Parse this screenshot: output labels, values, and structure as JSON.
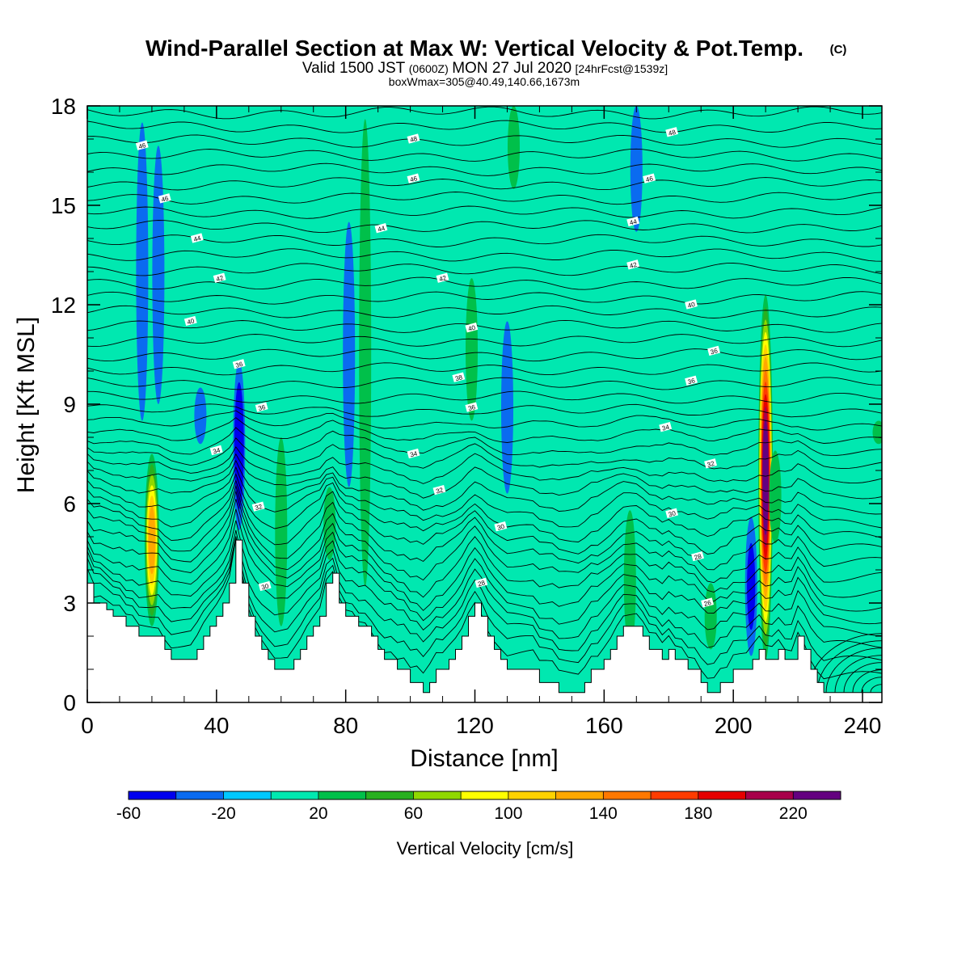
{
  "header": {
    "title": "Wind-Parallel Section at Max W: Vertical Velocity & Pot.Temp.",
    "title_mark": "(C)",
    "valid_prefix": "Valid 1500 JST",
    "valid_utc": "(0600Z)",
    "valid_date": "MON 27 Jul 2020",
    "forecast": "[24hrFcst@1539z]",
    "box_info": "boxWmax=305@40.49,140.66,1673m"
  },
  "chart_data": {
    "type": "heatmap",
    "title": "Wind-Parallel Section at Max W: Vertical Velocity & Pot.Temp.",
    "xlabel": "Distance [nm]",
    "ylabel": "Height [Kft MSL]",
    "xlim": [
      0,
      246
    ],
    "ylim": [
      0,
      18
    ],
    "x_ticks": [
      "0",
      "40",
      "80",
      "120",
      "160",
      "200",
      "240"
    ],
    "y_ticks": [
      "0",
      "3",
      "6",
      "9",
      "12",
      "15",
      "18"
    ],
    "x_tick_values": [
      0,
      40,
      80,
      120,
      160,
      200,
      240
    ],
    "y_tick_values": [
      0,
      3,
      6,
      9,
      12,
      15,
      18
    ],
    "colorbar": {
      "label": "Vertical Velocity [cm/s]",
      "min": -60,
      "max": 240,
      "step": 20,
      "tick_labels": [
        "-60",
        "-20",
        "20",
        "60",
        "100",
        "140",
        "180",
        "220"
      ],
      "tick_values": [
        -60,
        -20,
        20,
        60,
        100,
        140,
        180,
        220
      ],
      "colors": [
        "#0000ee",
        "#0a6bf0",
        "#00c8ff",
        "#00e8b0",
        "#00c04a",
        "#28b020",
        "#90d800",
        "#ffff00",
        "#ffd200",
        "#ffa800",
        "#ff7800",
        "#ff3c00",
        "#e60000",
        "#a8004a",
        "#640080"
      ]
    },
    "background_w": 0,
    "vertical_velocity_features": [
      {
        "x": 20,
        "y_bot": 2.3,
        "y_top": 7.5,
        "w": 124
      },
      {
        "x": 205.5,
        "y_bot": 1.4,
        "y_top": 5.6,
        "w": -40
      },
      {
        "x": 47,
        "y_bot": 5.2,
        "y_top": 10.3,
        "w": -60
      },
      {
        "x": 17,
        "y_bot": 8.5,
        "y_top": 17.5,
        "w": -30
      },
      {
        "x": 22,
        "y_bot": 9.0,
        "y_top": 16.8,
        "w": -30
      },
      {
        "x": 35,
        "y_bot": 7.8,
        "y_top": 9.5,
        "w": -30
      },
      {
        "x": 60,
        "y_bot": 2.3,
        "y_top": 8.0,
        "w": 30
      },
      {
        "x": 75,
        "y_bot": 4.3,
        "y_top": 6.5,
        "w": 30
      },
      {
        "x": 81,
        "y_bot": 6.5,
        "y_top": 14.5,
        "w": -30
      },
      {
        "x": 86,
        "y_bot": 3.5,
        "y_top": 17.6,
        "w": 30
      },
      {
        "x": 119,
        "y_bot": 8.5,
        "y_top": 12.8,
        "w": 30
      },
      {
        "x": 130,
        "y_bot": 6.3,
        "y_top": 11.5,
        "w": -30
      },
      {
        "x": 132,
        "y_bot": 15.5,
        "y_top": 18.0,
        "w": 30
      },
      {
        "x": 168,
        "y_bot": 1.6,
        "y_top": 5.8,
        "w": 30
      },
      {
        "x": 170,
        "y_bot": 14.2,
        "y_top": 18.0,
        "w": -30
      },
      {
        "x": 193,
        "y_bot": 1.6,
        "y_top": 3.6,
        "w": 30
      },
      {
        "x": 210,
        "y_bot": 1.3,
        "y_top": 12.3,
        "w": 220
      },
      {
        "x": 213,
        "y_bot": 4.8,
        "y_top": 7.6,
        "w": 30
      },
      {
        "x": 245,
        "y_bot": 7.8,
        "y_top": 8.5,
        "w": 30
      }
    ],
    "terrain_kft": [
      [
        0,
        3.6
      ],
      [
        2,
        3.6
      ],
      [
        2,
        3.0
      ],
      [
        6,
        3.0
      ],
      [
        6,
        2.8
      ],
      [
        8,
        2.8
      ],
      [
        8,
        2.6
      ],
      [
        12,
        2.6
      ],
      [
        12,
        2.3
      ],
      [
        16,
        2.3
      ],
      [
        16,
        2.0
      ],
      [
        24,
        2.0
      ],
      [
        24,
        1.6
      ],
      [
        26,
        1.6
      ],
      [
        26,
        1.3
      ],
      [
        34,
        1.3
      ],
      [
        34,
        1.6
      ],
      [
        36,
        1.6
      ],
      [
        36,
        2.0
      ],
      [
        38,
        2.0
      ],
      [
        38,
        2.3
      ],
      [
        40,
        2.3
      ],
      [
        40,
        2.6
      ],
      [
        42,
        2.6
      ],
      [
        42,
        3.0
      ],
      [
        44,
        3.0
      ],
      [
        44,
        3.6
      ],
      [
        46,
        3.6
      ],
      [
        46,
        4.9
      ],
      [
        48,
        4.9
      ],
      [
        48,
        3.6
      ],
      [
        50,
        3.6
      ],
      [
        50,
        2.6
      ],
      [
        52,
        2.6
      ],
      [
        52,
        2.0
      ],
      [
        54,
        2.0
      ],
      [
        54,
        1.6
      ],
      [
        56,
        1.6
      ],
      [
        56,
        1.3
      ],
      [
        58,
        1.3
      ],
      [
        58,
        1.0
      ],
      [
        64,
        1.0
      ],
      [
        64,
        1.3
      ],
      [
        66,
        1.3
      ],
      [
        66,
        1.6
      ],
      [
        68,
        1.6
      ],
      [
        68,
        2.0
      ],
      [
        70,
        2.0
      ],
      [
        70,
        2.3
      ],
      [
        72,
        2.3
      ],
      [
        72,
        2.6
      ],
      [
        74,
        2.6
      ],
      [
        74,
        3.6
      ],
      [
        76,
        3.6
      ],
      [
        76,
        3.9
      ],
      [
        78,
        3.9
      ],
      [
        78,
        3.0
      ],
      [
        80,
        3.0
      ],
      [
        80,
        2.6
      ],
      [
        84,
        2.6
      ],
      [
        84,
        2.3
      ],
      [
        88,
        2.3
      ],
      [
        88,
        2.0
      ],
      [
        90,
        2.0
      ],
      [
        90,
        1.6
      ],
      [
        92,
        1.6
      ],
      [
        92,
        1.3
      ],
      [
        96,
        1.3
      ],
      [
        96,
        1.0
      ],
      [
        100,
        1.0
      ],
      [
        100,
        0.6
      ],
      [
        104,
        0.6
      ],
      [
        104,
        0.3
      ],
      [
        106,
        0.3
      ],
      [
        106,
        0.6
      ],
      [
        108,
        0.6
      ],
      [
        108,
        1.0
      ],
      [
        112,
        1.0
      ],
      [
        112,
        1.3
      ],
      [
        114,
        1.3
      ],
      [
        114,
        1.6
      ],
      [
        116,
        1.6
      ],
      [
        116,
        2.0
      ],
      [
        118,
        2.0
      ],
      [
        118,
        2.6
      ],
      [
        120,
        2.6
      ],
      [
        120,
        3.0
      ],
      [
        122,
        3.0
      ],
      [
        122,
        2.6
      ],
      [
        124,
        2.6
      ],
      [
        124,
        2.0
      ],
      [
        126,
        2.0
      ],
      [
        126,
        1.6
      ],
      [
        128,
        1.6
      ],
      [
        128,
        1.3
      ],
      [
        130,
        1.3
      ],
      [
        130,
        1.0
      ],
      [
        140,
        1.0
      ],
      [
        140,
        0.6
      ],
      [
        146,
        0.6
      ],
      [
        146,
        0.3
      ],
      [
        154,
        0.3
      ],
      [
        154,
        0.6
      ],
      [
        156,
        0.6
      ],
      [
        156,
        1.0
      ],
      [
        160,
        1.0
      ],
      [
        160,
        1.3
      ],
      [
        162,
        1.3
      ],
      [
        162,
        1.6
      ],
      [
        164,
        1.6
      ],
      [
        164,
        2.0
      ],
      [
        166,
        2.0
      ],
      [
        166,
        2.3
      ],
      [
        172,
        2.3
      ],
      [
        172,
        2.0
      ],
      [
        174,
        2.0
      ],
      [
        174,
        1.6
      ],
      [
        178,
        1.6
      ],
      [
        178,
        1.3
      ],
      [
        180,
        1.3
      ],
      [
        180,
        1.6
      ],
      [
        182,
        1.6
      ],
      [
        182,
        1.3
      ],
      [
        186,
        1.3
      ],
      [
        186,
        1.0
      ],
      [
        190,
        1.0
      ],
      [
        190,
        0.6
      ],
      [
        192,
        0.6
      ],
      [
        192,
        0.3
      ],
      [
        196,
        0.3
      ],
      [
        196,
        0.6
      ],
      [
        200,
        0.6
      ],
      [
        200,
        1.0
      ],
      [
        206,
        1.0
      ],
      [
        206,
        1.3
      ],
      [
        208,
        1.3
      ],
      [
        208,
        1.6
      ],
      [
        210,
        1.6
      ],
      [
        210,
        1.3
      ],
      [
        214,
        1.3
      ],
      [
        214,
        1.6
      ],
      [
        216,
        1.6
      ],
      [
        216,
        1.3
      ],
      [
        220,
        1.3
      ],
      [
        220,
        2.0
      ],
      [
        222,
        2.0
      ],
      [
        222,
        1.6
      ],
      [
        224,
        1.6
      ],
      [
        224,
        1.0
      ],
      [
        226,
        1.0
      ],
      [
        226,
        0.6
      ],
      [
        228,
        0.6
      ],
      [
        228,
        0.3
      ],
      [
        246,
        0.3
      ]
    ],
    "theta_contours": {
      "units": "C",
      "interval": 2,
      "labels": [
        {
          "text": "46",
          "x": 17,
          "y": 16.8
        },
        {
          "text": "46",
          "x": 24,
          "y": 15.2
        },
        {
          "text": "44",
          "x": 34,
          "y": 14.0
        },
        {
          "text": "42",
          "x": 41,
          "y": 12.8
        },
        {
          "text": "40",
          "x": 32,
          "y": 11.5
        },
        {
          "text": "36",
          "x": 47,
          "y": 10.2
        },
        {
          "text": "36",
          "x": 54,
          "y": 8.9
        },
        {
          "text": "34",
          "x": 40,
          "y": 7.6
        },
        {
          "text": "32",
          "x": 53,
          "y": 5.9
        },
        {
          "text": "30",
          "x": 55,
          "y": 3.5
        },
        {
          "text": "48",
          "x": 101,
          "y": 17.0
        },
        {
          "text": "46",
          "x": 101,
          "y": 15.8
        },
        {
          "text": "44",
          "x": 91,
          "y": 14.3
        },
        {
          "text": "42",
          "x": 110,
          "y": 12.8
        },
        {
          "text": "40",
          "x": 119,
          "y": 11.3
        },
        {
          "text": "38",
          "x": 115,
          "y": 9.8
        },
        {
          "text": "36",
          "x": 119,
          "y": 8.9
        },
        {
          "text": "34",
          "x": 101,
          "y": 7.5
        },
        {
          "text": "32",
          "x": 109,
          "y": 6.4
        },
        {
          "text": "30",
          "x": 128,
          "y": 5.3
        },
        {
          "text": "28",
          "x": 122,
          "y": 3.6
        },
        {
          "text": "48",
          "x": 181,
          "y": 17.2
        },
        {
          "text": "46",
          "x": 174,
          "y": 15.8
        },
        {
          "text": "44",
          "x": 169,
          "y": 14.5
        },
        {
          "text": "42",
          "x": 169,
          "y": 13.2
        },
        {
          "text": "40",
          "x": 187,
          "y": 12.0
        },
        {
          "text": "36",
          "x": 194,
          "y": 10.6
        },
        {
          "text": "36",
          "x": 187,
          "y": 9.7
        },
        {
          "text": "34",
          "x": 179,
          "y": 8.3
        },
        {
          "text": "32",
          "x": 193,
          "y": 7.2
        },
        {
          "text": "30",
          "x": 181,
          "y": 5.7
        },
        {
          "text": "28",
          "x": 189,
          "y": 4.4
        },
        {
          "text": "26",
          "x": 192,
          "y": 3.0
        }
      ]
    }
  }
}
